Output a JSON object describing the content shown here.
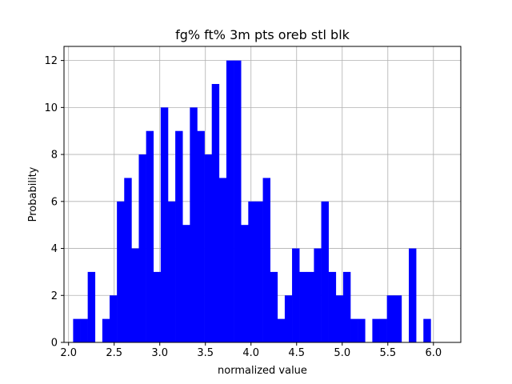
{
  "chart_data": {
    "type": "bar",
    "title": "fg% ft% 3m pts oreb stl blk",
    "xlabel": "normalized value",
    "ylabel": "Probability",
    "xlim": [
      1.95,
      6.3
    ],
    "ylim": [
      0,
      12.6
    ],
    "xticks": [
      2.0,
      2.5,
      3.0,
      3.5,
      4.0,
      4.5,
      5.0,
      5.5,
      6.0
    ],
    "xtick_labels": [
      "2.0",
      "2.5",
      "3.0",
      "3.5",
      "4.0",
      "4.5",
      "5.0",
      "5.5",
      "6.0"
    ],
    "yticks": [
      0,
      2,
      4,
      6,
      8,
      10,
      12
    ],
    "ytick_labels": [
      "0",
      "2",
      "4",
      "6",
      "8",
      "10",
      "12"
    ],
    "grid": true,
    "bar_color": "#0000ff",
    "bin_start": 2.05,
    "bin_width": 0.08,
    "values": [
      1,
      1,
      3,
      0,
      1,
      2,
      6,
      7,
      4,
      8,
      9,
      3,
      10,
      6,
      9,
      5,
      10,
      9,
      8,
      11,
      7,
      12,
      12,
      5,
      6,
      6,
      7,
      3,
      1,
      2,
      4,
      3,
      3,
      4,
      6,
      3,
      2,
      3,
      1,
      1,
      0,
      1,
      1,
      2,
      2,
      0,
      4,
      0,
      1
    ]
  }
}
